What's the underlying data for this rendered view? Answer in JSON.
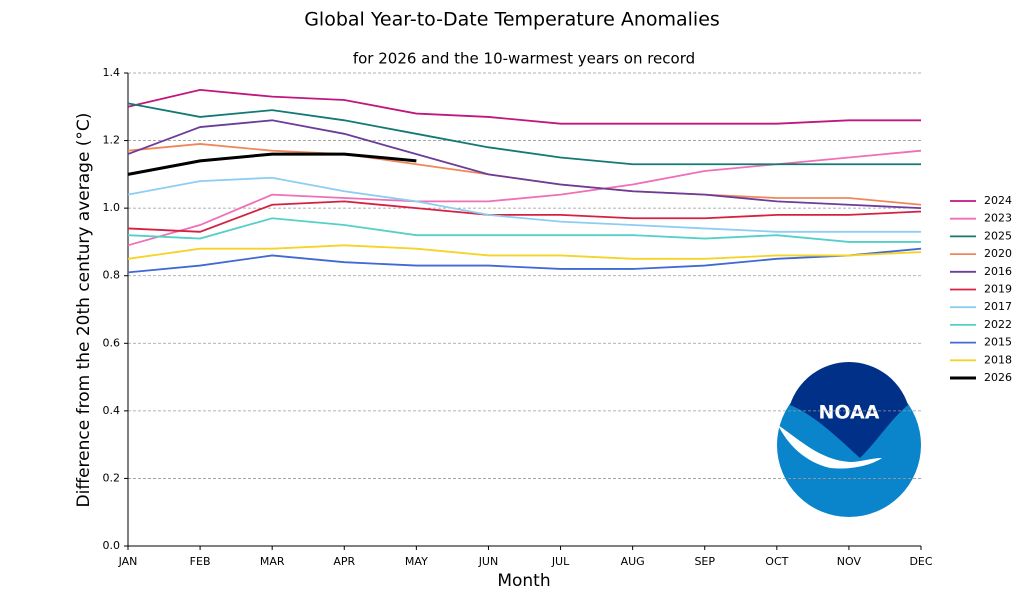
{
  "chart_data": {
    "type": "line",
    "title": "Global Year-to-Date Temperature Anomalies",
    "subtitle": "for 2026 and the 10-warmest years on record",
    "x_label": "Month",
    "y_label": "Difference from the 20th century average (°C)",
    "categories": [
      "JAN",
      "FEB",
      "MAR",
      "APR",
      "MAY",
      "JUN",
      "JUL",
      "AUG",
      "SEP",
      "OCT",
      "NOV",
      "DEC"
    ],
    "ylim": [
      0,
      1.4
    ],
    "yticks": [
      {
        "value": 0,
        "label": "0.0"
      },
      0.2,
      0.4,
      0.6,
      0.8,
      {
        "value": 1,
        "label": "1.0"
      },
      1.2,
      1.4
    ],
    "grid": true,
    "legend": "right",
    "series": [
      {
        "name": "2024",
        "color": "#c0177f",
        "values": [
          1.3,
          1.35,
          1.33,
          1.32,
          1.28,
          1.27,
          1.25,
          1.25,
          1.25,
          1.25,
          1.26,
          1.26
        ]
      },
      {
        "name": "2023",
        "color": "#f06fb6",
        "values": [
          0.89,
          0.95,
          1.04,
          1.03,
          1.02,
          1.02,
          1.04,
          1.07,
          1.11,
          1.13,
          1.15,
          1.17
        ]
      },
      {
        "name": "2025",
        "color": "#137a73",
        "values": [
          1.31,
          1.27,
          1.29,
          1.26,
          1.22,
          1.18,
          1.15,
          1.13,
          1.13,
          1.13,
          1.13,
          1.13
        ]
      },
      {
        "name": "2020",
        "color": "#f0875a",
        "values": [
          1.17,
          1.19,
          1.17,
          1.16,
          1.13,
          1.1,
          1.07,
          1.05,
          1.04,
          1.03,
          1.03,
          1.01
        ]
      },
      {
        "name": "2016",
        "color": "#6a3d9a",
        "values": [
          1.16,
          1.24,
          1.26,
          1.22,
          1.16,
          1.1,
          1.07,
          1.05,
          1.04,
          1.02,
          1.01,
          1.0
        ]
      },
      {
        "name": "2019",
        "color": "#d62040",
        "values": [
          0.94,
          0.93,
          1.01,
          1.02,
          1.0,
          0.98,
          0.98,
          0.97,
          0.97,
          0.98,
          0.98,
          0.99
        ]
      },
      {
        "name": "2017",
        "color": "#8ecdf2",
        "values": [
          1.04,
          1.08,
          1.09,
          1.05,
          1.02,
          0.98,
          0.96,
          0.95,
          0.94,
          0.93,
          0.93,
          0.93
        ]
      },
      {
        "name": "2022",
        "color": "#55d0c8",
        "values": [
          0.92,
          0.91,
          0.97,
          0.95,
          0.92,
          0.92,
          0.92,
          0.92,
          0.91,
          0.92,
          0.9,
          0.9
        ]
      },
      {
        "name": "2015",
        "color": "#4169d6",
        "values": [
          0.81,
          0.83,
          0.86,
          0.84,
          0.83,
          0.83,
          0.82,
          0.82,
          0.83,
          0.85,
          0.86,
          0.88
        ]
      },
      {
        "name": "2018",
        "color": "#f5d327",
        "values": [
          0.85,
          0.88,
          0.88,
          0.89,
          0.88,
          0.86,
          0.86,
          0.85,
          0.85,
          0.86,
          0.86,
          0.87
        ]
      },
      {
        "name": "2026",
        "color": "#000000",
        "linewidth": 3,
        "values": [
          1.1,
          1.14,
          1.16,
          1.16,
          1.14,
          null,
          null,
          null,
          null,
          null,
          null,
          null
        ]
      }
    ]
  },
  "logo": {
    "text": "NOAA"
  }
}
